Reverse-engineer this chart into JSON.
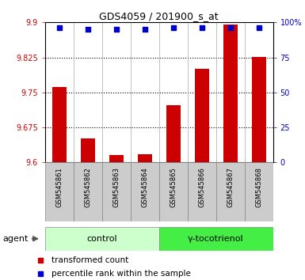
{
  "title": "GDS4059 / 201900_s_at",
  "samples": [
    "GSM545861",
    "GSM545862",
    "GSM545863",
    "GSM545864",
    "GSM545865",
    "GSM545866",
    "GSM545867",
    "GSM545868"
  ],
  "red_values": [
    9.762,
    9.651,
    9.615,
    9.618,
    9.722,
    9.8,
    9.895,
    9.826
  ],
  "blue_values": [
    96,
    95,
    95,
    95,
    96,
    96,
    96,
    96
  ],
  "ylim_left": [
    9.6,
    9.9
  ],
  "ylim_right": [
    0,
    100
  ],
  "yticks_left": [
    9.6,
    9.675,
    9.75,
    9.825,
    9.9
  ],
  "yticks_right": [
    0,
    25,
    50,
    75,
    100
  ],
  "ytick_labels_left": [
    "9.6",
    "9.675",
    "9.75",
    "9.825",
    "9.9"
  ],
  "ytick_labels_right": [
    "0",
    "25",
    "50",
    "75",
    "100%"
  ],
  "groups": [
    {
      "label": "control",
      "start": 0,
      "end": 4,
      "color": "#ccffcc"
    },
    {
      "label": "γ-tocotrienol",
      "start": 4,
      "end": 8,
      "color": "#44ee44"
    }
  ],
  "bar_color": "#cc0000",
  "dot_color": "#0000cc",
  "bar_width": 0.5,
  "dot_size": 25,
  "dot_marker": "s",
  "left_tick_color": "#cc0000",
  "right_tick_color": "#0000cc",
  "background_plot": "#ffffff",
  "sample_box_color": "#cccccc",
  "sample_box_edge": "#888888",
  "legend_items": [
    {
      "color": "#cc0000",
      "marker": "s",
      "label": "transformed count"
    },
    {
      "color": "#0000cc",
      "marker": "s",
      "label": "percentile rank within the sample"
    }
  ],
  "agent_label": "agent",
  "grid_linestyle": "dotted",
  "grid_color": "#000000",
  "grid_linewidth": 0.8,
  "vline_color": "#aaaaaa",
  "vline_lw": 0.5,
  "title_fontsize": 9,
  "tick_fontsize": 7,
  "sample_fontsize": 6,
  "group_fontsize": 8,
  "legend_fontsize": 7.5,
  "agent_fontsize": 8
}
